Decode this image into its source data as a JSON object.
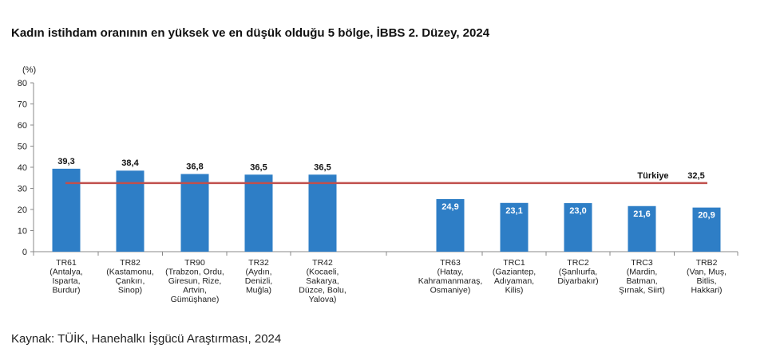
{
  "title": "Kadın istihdam oranının en yüksek ve en düşük olduğu 5 bölge, İBBS 2. Düzey, 2024",
  "source": "Kaynak: TÜİK, Hanehalkı İşgücü Araştırması, 2024",
  "chart_data": {
    "type": "bar",
    "title": "Kadın istihdam oranının en yüksek ve en düşük olduğu 5 bölge, İBBS 2. Düzey, 2024",
    "ylabel": "(%)",
    "ylim": [
      0,
      80
    ],
    "yticks": [
      0,
      10,
      20,
      30,
      40,
      50,
      60,
      70,
      80
    ],
    "grid": false,
    "legend": "none",
    "bar_color": "#2e7ec6",
    "reference_line_color": "#c0504d",
    "categories": [
      [
        "TR61",
        "(Antalya,",
        "Isparta,",
        "Burdur)"
      ],
      [
        "TR82",
        "(Kastamonu,",
        "Çankırı,",
        "Sinop)"
      ],
      [
        "TR90",
        "(Trabzon, Ordu,",
        "Giresun, Rize,",
        "Artvin,",
        "Gümüşhane)"
      ],
      [
        "TR32",
        "(Aydın,",
        "Denizli,",
        "Muğla)"
      ],
      [
        "TR42",
        "(Kocaeli,",
        "Sakarya,",
        "Düzce, Bolu,",
        "Yalova)"
      ],
      [
        "TR63",
        "(Hatay,",
        "Kahramanmaraş,",
        "Osmaniye)"
      ],
      [
        "TRC1",
        "(Gaziantep,",
        "Adıyaman,",
        "Kilis)"
      ],
      [
        "TRC2",
        "(Şanlıurfa,",
        "Diyarbakır)"
      ],
      [
        "TRC3",
        "(Mardin,",
        "Batman,",
        "Şırnak, Siirt)"
      ],
      [
        "TRB2",
        "(Van, Muş,",
        "Bitlis,",
        "Hakkari)"
      ]
    ],
    "values": [
      39.3,
      38.4,
      36.8,
      36.5,
      36.5,
      24.9,
      23.1,
      23.0,
      21.6,
      20.9
    ],
    "value_labels": [
      "39,3",
      "38,4",
      "36,8",
      "36,5",
      "36,5",
      "24,9",
      "23,1",
      "23,0",
      "21,6",
      "20,9"
    ],
    "reference": {
      "name": "Türkiye",
      "value": 32.5,
      "value_label": "32,5"
    }
  }
}
